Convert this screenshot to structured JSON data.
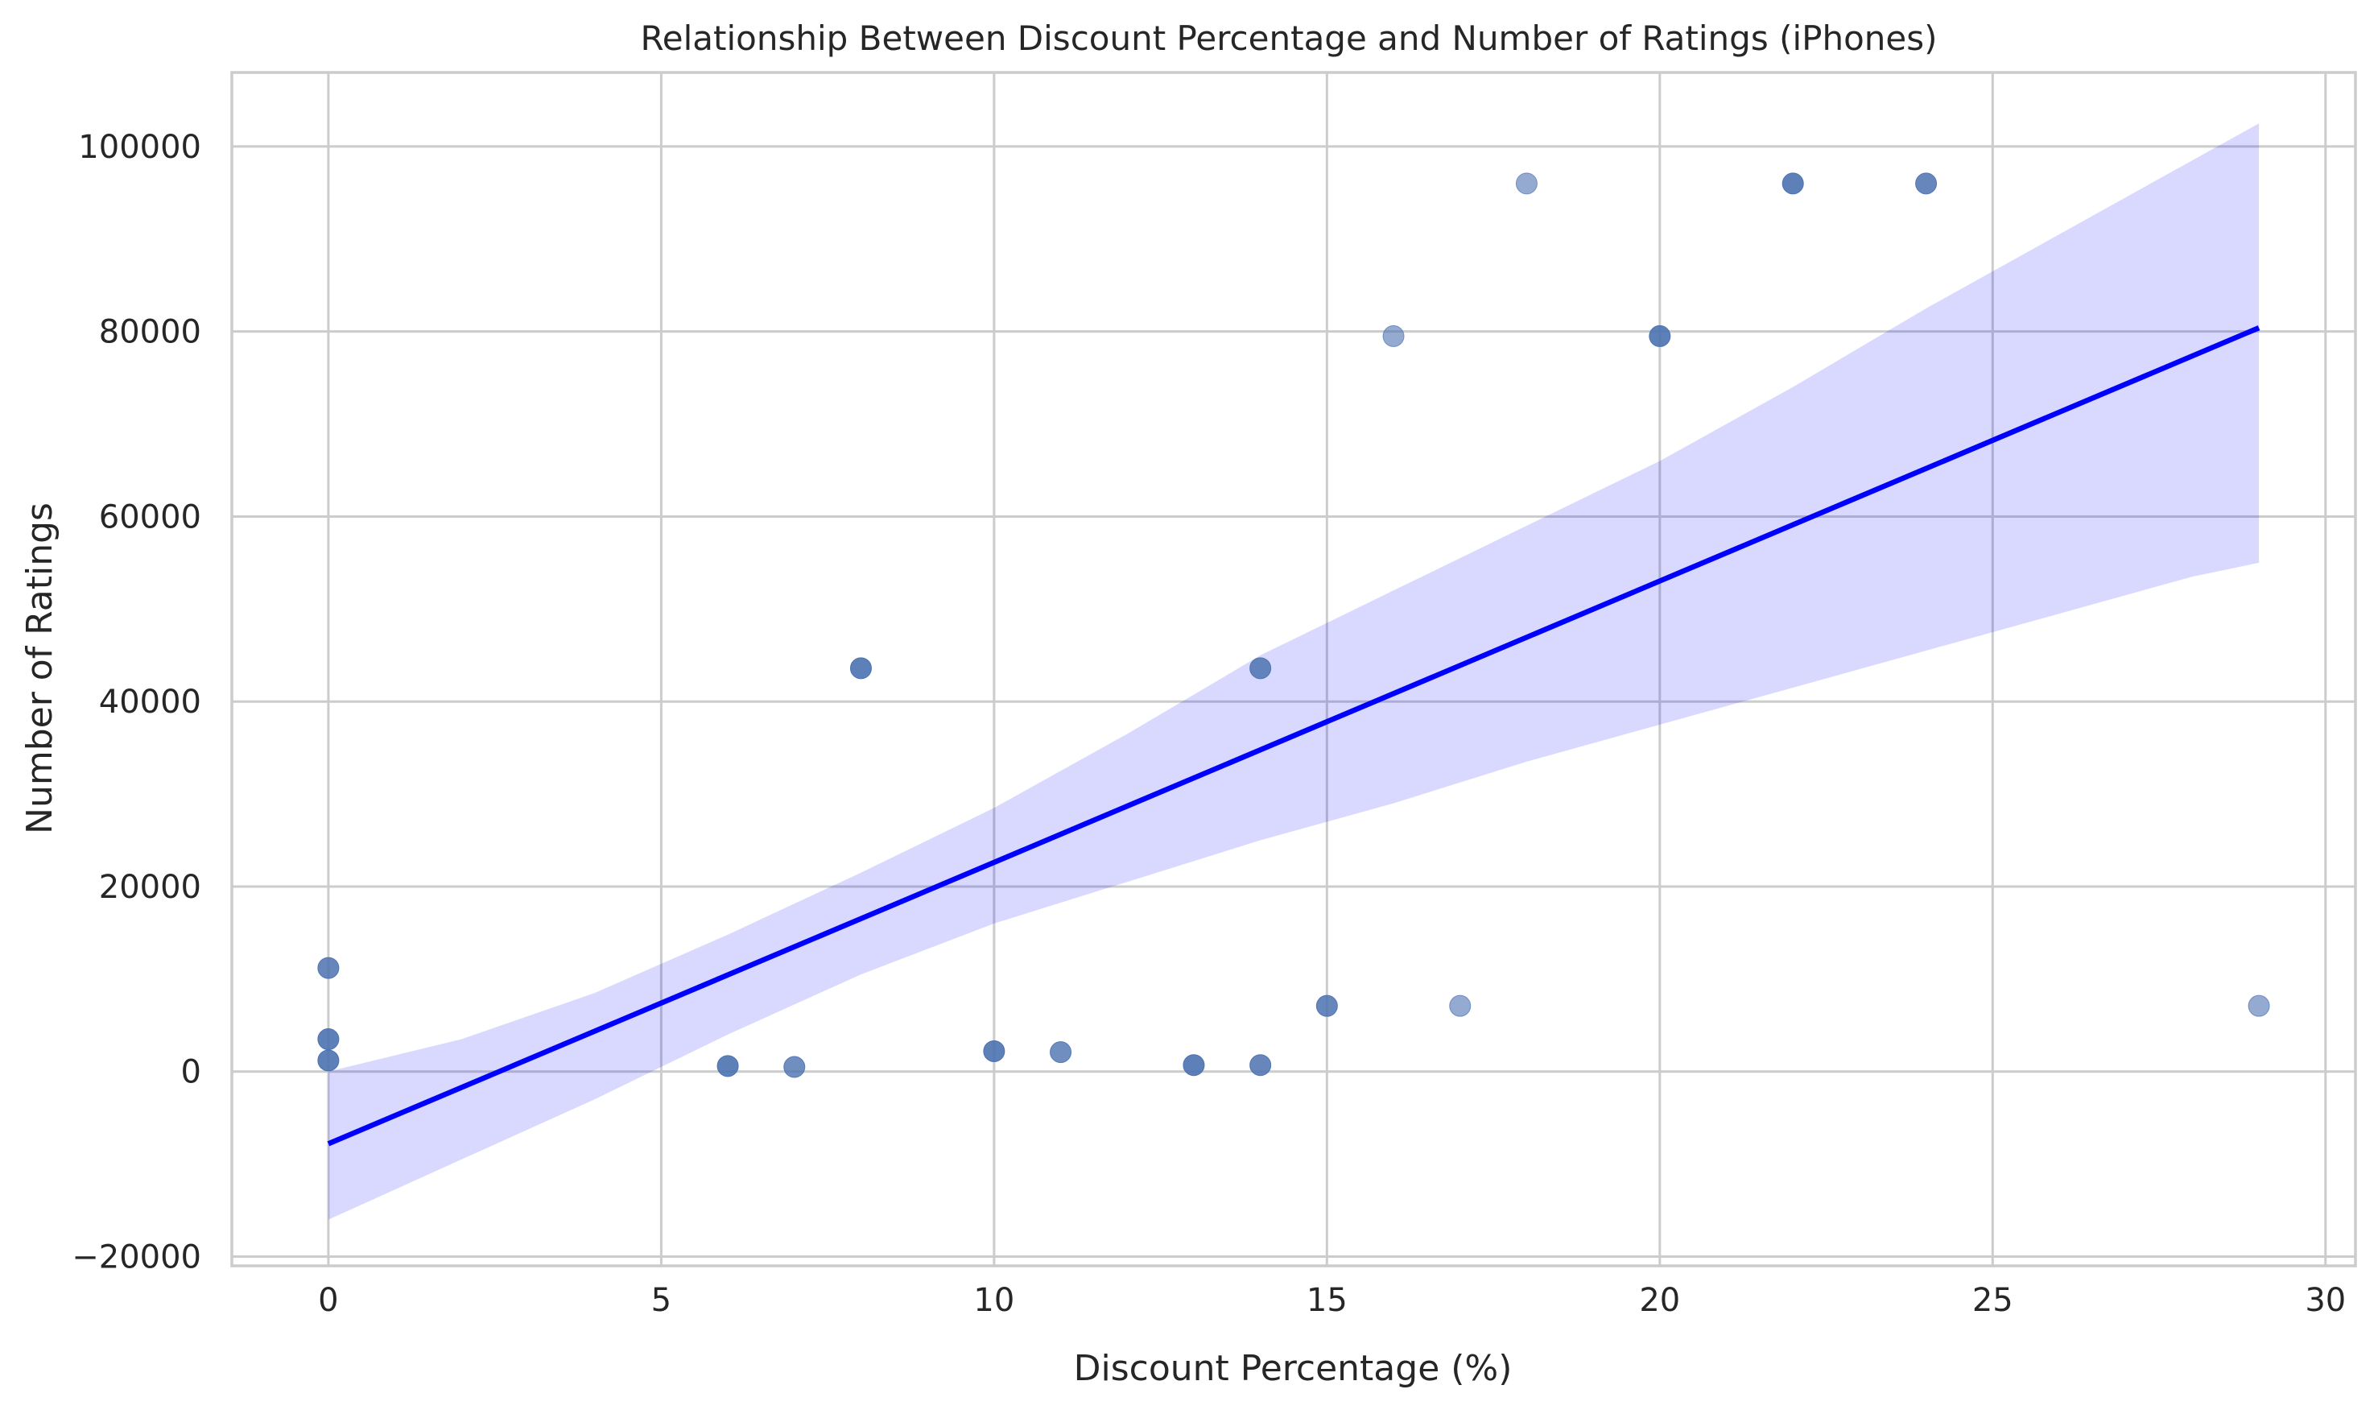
{
  "chart_data": {
    "type": "scatter",
    "title": "Relationship Between Discount Percentage and Number of Ratings (iPhones)",
    "xlabel": "Discount Percentage (%)",
    "ylabel": "Number of Ratings",
    "xlim": [
      -1.45,
      30.45
    ],
    "ylim": [
      -21000,
      108000
    ],
    "xticks": [
      0,
      5,
      10,
      15,
      20,
      25,
      30
    ],
    "yticks": [
      -20000,
      0,
      20000,
      40000,
      60000,
      80000,
      100000
    ],
    "xtick_labels": [
      "0",
      "5",
      "10",
      "15",
      "20",
      "25",
      "30"
    ],
    "ytick_labels": [
      "−20000",
      "0",
      "20000",
      "40000",
      "60000",
      "80000",
      "100000"
    ],
    "grid": true,
    "point_color": "#4c72b0",
    "line_color": "#0000ff",
    "band_color": "#0000ff",
    "points": [
      {
        "x": 0,
        "y": 11200,
        "alpha": 0.85
      },
      {
        "x": 0,
        "y": 3500,
        "alpha": 0.9
      },
      {
        "x": 0,
        "y": 1200,
        "alpha": 0.9
      },
      {
        "x": 6,
        "y": 600,
        "alpha": 0.9
      },
      {
        "x": 7,
        "y": 500,
        "alpha": 0.8
      },
      {
        "x": 8,
        "y": 43600,
        "alpha": 0.9
      },
      {
        "x": 10,
        "y": 2200,
        "alpha": 0.9
      },
      {
        "x": 11,
        "y": 2100,
        "alpha": 0.8
      },
      {
        "x": 13,
        "y": 700,
        "alpha": 0.9
      },
      {
        "x": 14,
        "y": 700,
        "alpha": 0.85
      },
      {
        "x": 14,
        "y": 43600,
        "alpha": 0.85
      },
      {
        "x": 15,
        "y": 7100,
        "alpha": 0.85
      },
      {
        "x": 16,
        "y": 79500,
        "alpha": 0.6
      },
      {
        "x": 17,
        "y": 7100,
        "alpha": 0.6
      },
      {
        "x": 18,
        "y": 96000,
        "alpha": 0.6
      },
      {
        "x": 20,
        "y": 79500,
        "alpha": 0.9
      },
      {
        "x": 22,
        "y": 96000,
        "alpha": 0.9
      },
      {
        "x": 24,
        "y": 96000,
        "alpha": 0.85
      },
      {
        "x": 29,
        "y": 7100,
        "alpha": 0.6
      }
    ],
    "regression": {
      "x": [
        0,
        29
      ],
      "y": [
        -7800,
        80400
      ]
    },
    "confidence_band": {
      "x": [
        0,
        2,
        4,
        6,
        8,
        10,
        12,
        14,
        16,
        18,
        20,
        22,
        24,
        26,
        28,
        29
      ],
      "upper": [
        0,
        3500,
        8500,
        14800,
        21500,
        28500,
        36500,
        45000,
        52000,
        59000,
        66000,
        74000,
        82500,
        90500,
        98500,
        102500
      ],
      "lower": [
        -16000,
        -9500,
        -3000,
        4000,
        10500,
        16000,
        20500,
        25000,
        29000,
        33500,
        37500,
        41500,
        45500,
        49500,
        53500,
        55000
      ]
    }
  }
}
